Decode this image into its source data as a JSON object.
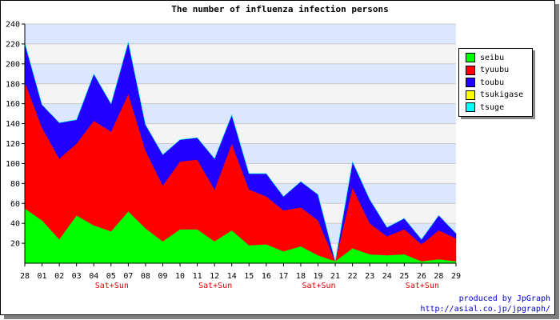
{
  "chart_data": {
    "type": "area",
    "stacked": true,
    "title": "The number of influenza infection persons",
    "xlabel": "",
    "ylabel": "",
    "ylim": [
      0,
      240
    ],
    "yticks": [
      20,
      40,
      60,
      80,
      100,
      120,
      140,
      160,
      180,
      200,
      220,
      240
    ],
    "grid": true,
    "legend_position": "right",
    "categories": [
      "28",
      "01",
      "02",
      "03",
      "04",
      "05",
      "07",
      "08",
      "09",
      "10",
      "11",
      "12",
      "14",
      "15",
      "16",
      "17",
      "18",
      "19",
      "21",
      "22",
      "23",
      "24",
      "25",
      "26",
      "28",
      "29"
    ],
    "weekend_label": "Sat+Sun",
    "weekend_marks": [
      "05",
      "12",
      "19",
      "26"
    ],
    "series": [
      {
        "name": "seibu",
        "color": "#00ff00",
        "values": [
          55,
          43,
          24,
          48,
          38,
          32,
          52,
          35,
          22,
          34,
          34,
          22,
          33,
          18,
          19,
          12,
          17,
          8,
          2,
          15,
          9,
          8,
          9,
          2,
          4,
          2
        ]
      },
      {
        "name": "tyuubu",
        "color": "#ff0000",
        "values": [
          127,
          93,
          81,
          72,
          105,
          100,
          118,
          78,
          56,
          68,
          70,
          52,
          87,
          56,
          48,
          41,
          39,
          35,
          0,
          61,
          31,
          19,
          25,
          17,
          29,
          23
        ]
      },
      {
        "name": "toubu",
        "color": "#2200ff",
        "values": [
          39,
          23,
          36,
          24,
          47,
          28,
          52,
          26,
          31,
          22,
          22,
          31,
          29,
          16,
          23,
          14,
          26,
          26,
          0,
          26,
          24,
          9,
          11,
          5,
          15,
          5
        ]
      },
      {
        "name": "tsukigase",
        "color": "#ffff00",
        "values": [
          0,
          0,
          0,
          0,
          0,
          0,
          0,
          0,
          0,
          0,
          0,
          0,
          0,
          0,
          0,
          0,
          0,
          0,
          0,
          0,
          0,
          0,
          0,
          0,
          0,
          0
        ]
      },
      {
        "name": "tsuge",
        "color": "#00ffff",
        "values": [
          0,
          0,
          0,
          0,
          0,
          0,
          0,
          0,
          0,
          0,
          0,
          0,
          0,
          0,
          0,
          0,
          0,
          0,
          0,
          0,
          0,
          0,
          0,
          0,
          0,
          0
        ]
      }
    ]
  },
  "credit": {
    "line1": "produced by JpGraph",
    "line2": "http://asial.co.jp/jpgraph/"
  }
}
